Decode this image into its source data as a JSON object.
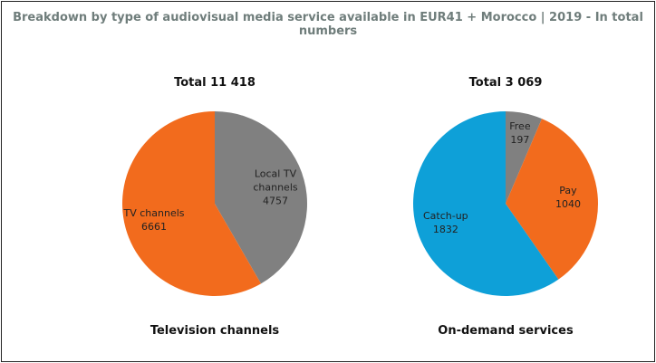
{
  "title": "Breakdown by type of audiovisual media service available in EUR41 + Morocco | 2019 - In total numbers",
  "chart_data": [
    {
      "type": "pie",
      "title": "Television channels",
      "subtitle": "Total 11 418",
      "categories": [
        "Local TV channels",
        "TV channels"
      ],
      "values": [
        4757,
        6661
      ],
      "colors": [
        "#808080",
        "#f26b1d"
      ]
    },
    {
      "type": "pie",
      "title": "On-demand services",
      "subtitle": "Total 3 069",
      "categories": [
        "Free",
        "Pay",
        "Catch-up"
      ],
      "values": [
        197,
        1040,
        1832
      ],
      "colors": [
        "#808080",
        "#f26b1d",
        "#0ea0d8"
      ]
    }
  ]
}
